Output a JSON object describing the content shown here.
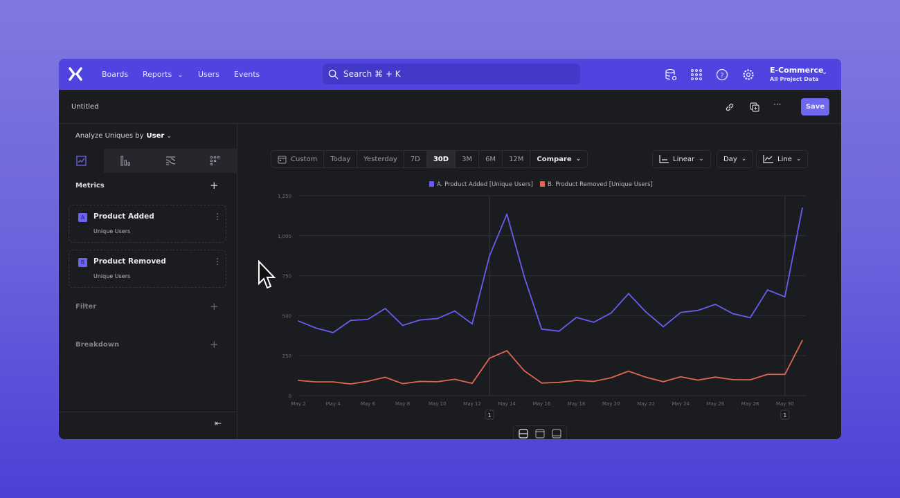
{
  "nav": {
    "links": [
      "Boards",
      "Reports",
      "Users",
      "Events"
    ],
    "search": "Search  ⌘ + K",
    "project": "E-Commerce",
    "project_sub": "All Project Data"
  },
  "report": {
    "title": "Untitled",
    "save": "Save"
  },
  "sidebar": {
    "analyze_label": "Analyze Uniques by",
    "analyze_value": "User",
    "metrics_label": "Metrics",
    "metrics": [
      {
        "badge": "A",
        "name": "Product Added",
        "sub": "Unique Users"
      },
      {
        "badge": "B",
        "name": "Product Removed",
        "sub": "Unique Users"
      }
    ],
    "filter_label": "Filter",
    "breakdown_label": "Breakdown"
  },
  "toolbar": {
    "ranges": [
      "Custom",
      "Today",
      "Yesterday",
      "7D",
      "30D",
      "3M",
      "6M",
      "12M"
    ],
    "selected": "30D",
    "compare": "Compare",
    "scale": "Linear",
    "interval": "Day",
    "chart_type": "Line"
  },
  "colors": {
    "accent": "#6c63f0",
    "series_a": "#6a5cf0",
    "series_b": "#e0674f",
    "nav": "#4f44e0"
  },
  "chart_data": {
    "type": "line",
    "x": [
      "May 2",
      "May 3",
      "May 4",
      "May 5",
      "May 6",
      "May 7",
      "May 8",
      "May 9",
      "May 10",
      "May 11",
      "May 12",
      "May 13",
      "May 14",
      "May 15",
      "May 16",
      "May 17",
      "May 18",
      "May 19",
      "May 20",
      "May 21",
      "May 22",
      "May 23",
      "May 24",
      "May 25",
      "May 26",
      "May 27",
      "May 28",
      "May 29",
      "May 30",
      "May 31"
    ],
    "x_tick_labels": [
      "May 2",
      "May 4",
      "May 6",
      "May 8",
      "May 10",
      "May 12",
      "May 14",
      "May 16",
      "May 18",
      "May 20",
      "May 22",
      "May 24",
      "May 26",
      "May 28",
      "May 30"
    ],
    "y_tick_labels": [
      "0",
      "250",
      "500",
      "750",
      "1,000",
      "1,250"
    ],
    "ylim": [
      0,
      1250
    ],
    "grid": true,
    "legend_placement": "top",
    "series": [
      {
        "name": "A. Product Added [Unique Users]",
        "values": [
          467,
          423,
          394,
          470,
          477,
          545,
          439,
          473,
          482,
          529,
          449,
          874,
          1135,
          743,
          416,
          403,
          489,
          459,
          517,
          638,
          523,
          431,
          520,
          533,
          571,
          513,
          487,
          661,
          618,
          1173
        ]
      },
      {
        "name": "B. Product Removed [Unique Users]",
        "values": [
          95,
          86,
          86,
          73,
          90,
          115,
          75,
          89,
          87,
          102,
          77,
          234,
          281,
          155,
          79,
          83,
          95,
          89,
          112,
          153,
          115,
          87,
          118,
          97,
          116,
          100,
          99,
          133,
          133,
          345
        ]
      }
    ],
    "annotations": [
      {
        "x": "May 13",
        "label": "1"
      },
      {
        "x": "May 30",
        "label": "1"
      }
    ]
  }
}
